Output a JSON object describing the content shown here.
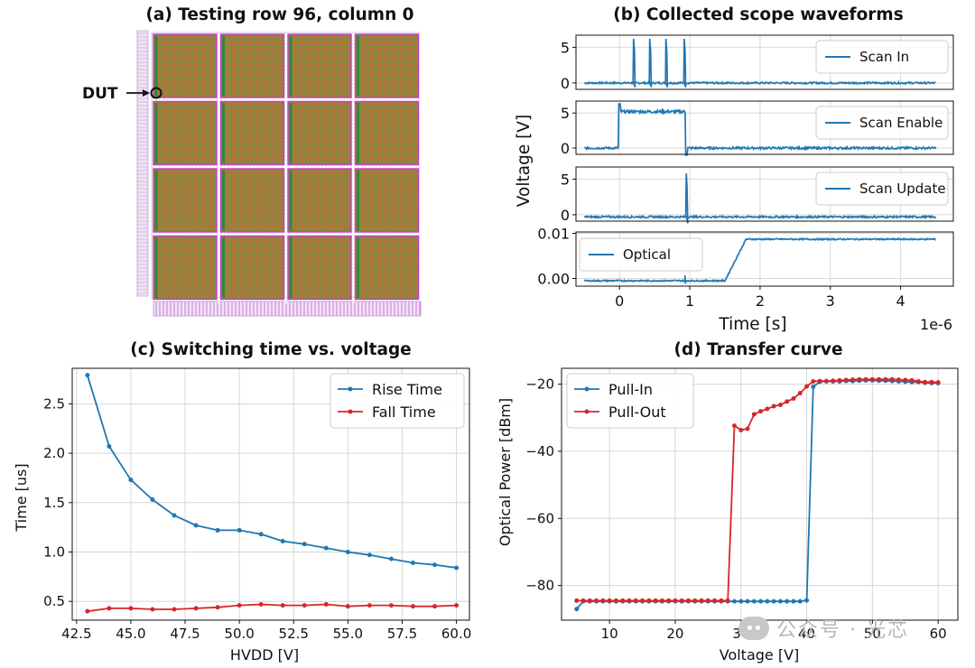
{
  "panel_a": {
    "title": "(a) Testing row 96, column 0",
    "dut_label": "DUT",
    "colors": {
      "core": "#b5773d",
      "grid": "#2d8a3a",
      "edge": "#c040c8",
      "lilac": "#e4d6ee"
    }
  },
  "chart_data": [
    {
      "id": "b",
      "type": "line",
      "title": "(b) Collected scope waveforms",
      "xlabel": "Time [s]",
      "ylabel": "Voltage [V]",
      "x_offset_label": "1e-6",
      "xlim": [
        -0.62,
        4.75
      ],
      "xticks": [
        0,
        1,
        2,
        3,
        4
      ],
      "grid": true,
      "color": "#1f77b4",
      "subplots": [
        {
          "name": "Scan In",
          "legend_loc": "right",
          "ylim": [
            -0.9,
            6.7
          ],
          "yticks": [
            "0",
            "5"
          ],
          "ytick_values": [
            0,
            5
          ],
          "pulses": [
            0.2,
            0.43,
            0.66,
            0.92
          ],
          "pulse_height": 6.2,
          "baseline": 0
        },
        {
          "name": "Scan Enable",
          "legend_loc": "right",
          "ylim": [
            -0.9,
            6.7
          ],
          "yticks": [
            "0",
            "5"
          ],
          "ytick_values": [
            0,
            5
          ],
          "high_start": 0.0,
          "high_end": 0.95,
          "high_level": 5.2,
          "baseline": 0
        },
        {
          "name": "Scan Update",
          "legend_loc": "right",
          "ylim": [
            -0.9,
            6.7
          ],
          "yticks": [
            "0",
            "5"
          ],
          "ytick_values": [
            0,
            5
          ],
          "spike_at": 0.95,
          "spike_height": 5.8,
          "baseline": -0.3
        },
        {
          "name": "Optical",
          "legend_loc": "left",
          "ylim": [
            -0.0017,
            0.0103
          ],
          "yticks": [
            "0.00",
            "0.01"
          ],
          "ytick_values": [
            0,
            0.01
          ],
          "rise_start": 1.5,
          "rise_end": 1.8,
          "low_level": -0.0005,
          "high_level": 0.0087
        }
      ]
    },
    {
      "id": "c",
      "type": "line",
      "title": "(c) Switching time vs. voltage",
      "xlabel": "HVDD [V]",
      "ylabel": "Time [us]",
      "xlim": [
        42.3,
        60.6
      ],
      "ylim": [
        0.31,
        2.86
      ],
      "xticks": [
        42.5,
        45.0,
        47.5,
        50.0,
        52.5,
        55.0,
        57.5,
        60.0
      ],
      "xtick_labels": [
        "42.5",
        "45.0",
        "47.5",
        "50.0",
        "52.5",
        "55.0",
        "57.5",
        "60.0"
      ],
      "yticks": [
        0.5,
        1.0,
        1.5,
        2.0,
        2.5
      ],
      "ytick_labels": [
        "0.5",
        "1.0",
        "1.5",
        "2.0",
        "2.5"
      ],
      "grid": true,
      "legend": "top-right",
      "x": [
        43,
        44,
        45,
        46,
        47,
        48,
        49,
        50,
        51,
        52,
        53,
        54,
        55,
        56,
        57,
        58,
        59,
        60
      ],
      "series": [
        {
          "name": "Rise Time",
          "color": "#1f77b4",
          "values": [
            2.79,
            2.07,
            1.73,
            1.53,
            1.37,
            1.27,
            1.22,
            1.22,
            1.18,
            1.11,
            1.08,
            1.04,
            1.0,
            0.97,
            0.93,
            0.89,
            0.87,
            0.84
          ]
        },
        {
          "name": "Fall Time",
          "color": "#d62728",
          "values": [
            0.4,
            0.43,
            0.43,
            0.42,
            0.42,
            0.43,
            0.44,
            0.46,
            0.47,
            0.46,
            0.46,
            0.47,
            0.45,
            0.46,
            0.46,
            0.45,
            0.45,
            0.46
          ]
        }
      ]
    },
    {
      "id": "d",
      "type": "line",
      "title": "(d) Transfer curve",
      "xlabel": "Voltage [V]",
      "ylabel": "Optical Power [dBm]",
      "xlim": [
        2.7,
        63.0
      ],
      "ylim": [
        -90.3,
        -15.3
      ],
      "xticks": [
        10,
        20,
        30,
        40,
        50,
        60
      ],
      "xtick_labels": [
        "10",
        "20",
        "30",
        "40",
        "50",
        "60"
      ],
      "yticks": [
        -20,
        -40,
        -60,
        -80
      ],
      "ytick_labels": [
        "−20",
        "−40",
        "−60",
        "−80"
      ],
      "grid": true,
      "legend": "top-left",
      "series": [
        {
          "name": "Pull-In",
          "color": "#1f77b4",
          "x": [
            5,
            6,
            7,
            8,
            9,
            10,
            11,
            12,
            13,
            14,
            15,
            16,
            17,
            18,
            19,
            20,
            21,
            22,
            23,
            24,
            25,
            26,
            27,
            28,
            29,
            30,
            31,
            32,
            33,
            34,
            35,
            36,
            37,
            38,
            39,
            40,
            41,
            42,
            43,
            44,
            45,
            46,
            47,
            48,
            49,
            50,
            51,
            52,
            53,
            54,
            55,
            56,
            57,
            58,
            59,
            60
          ],
          "values": [
            -87,
            -84.7,
            -84.7,
            -84.7,
            -84.7,
            -84.7,
            -84.7,
            -84.7,
            -84.7,
            -84.7,
            -84.7,
            -84.7,
            -84.7,
            -84.7,
            -84.7,
            -84.7,
            -84.7,
            -84.7,
            -84.7,
            -84.7,
            -84.7,
            -84.7,
            -84.7,
            -84.7,
            -84.7,
            -84.7,
            -84.7,
            -84.7,
            -84.7,
            -84.7,
            -84.7,
            -84.7,
            -84.7,
            -84.7,
            -84.7,
            -84.4,
            -20.8,
            -19.3,
            -19.2,
            -19.2,
            -19.2,
            -19.1,
            -19.1,
            -19.0,
            -18.9,
            -18.9,
            -19.0,
            -19.0,
            -19.1,
            -19.2,
            -19.3,
            -19.4,
            -19.4,
            -19.6,
            -19.7,
            -19.7
          ]
        },
        {
          "name": "Pull-Out",
          "color": "#d62728",
          "x": [
            60,
            59,
            58,
            57,
            56,
            55,
            54,
            53,
            52,
            51,
            50,
            49,
            48,
            47,
            46,
            45,
            44,
            43,
            42,
            41,
            40,
            39,
            38,
            37,
            36,
            35,
            34,
            33,
            32,
            31,
            30,
            29,
            28,
            27,
            26,
            25,
            24,
            23,
            22,
            21,
            20,
            19,
            18,
            17,
            16,
            15,
            14,
            13,
            12,
            11,
            10,
            9,
            8,
            7,
            6,
            5
          ],
          "values": [
            -19.5,
            -19.4,
            -19.4,
            -19.2,
            -18.9,
            -18.8,
            -18.7,
            -18.6,
            -18.6,
            -18.6,
            -18.6,
            -18.6,
            -18.6,
            -18.7,
            -18.8,
            -18.9,
            -19.0,
            -19.1,
            -19.1,
            -19.2,
            -20.7,
            -22.7,
            -24.3,
            -25.2,
            -26.2,
            -26.6,
            -27.4,
            -28.1,
            -29.0,
            -33.3,
            -33.7,
            -32.4,
            -84.5,
            -84.5,
            -84.5,
            -84.5,
            -84.5,
            -84.5,
            -84.5,
            -84.5,
            -84.5,
            -84.5,
            -84.5,
            -84.5,
            -84.5,
            -84.5,
            -84.5,
            -84.5,
            -84.5,
            -84.5,
            -84.5,
            -84.5,
            -84.5,
            -84.5,
            -84.5,
            -84.5
          ]
        }
      ]
    }
  ],
  "watermark": {
    "text": "公众号 · 光芯",
    "icon": "wechat-icon"
  }
}
